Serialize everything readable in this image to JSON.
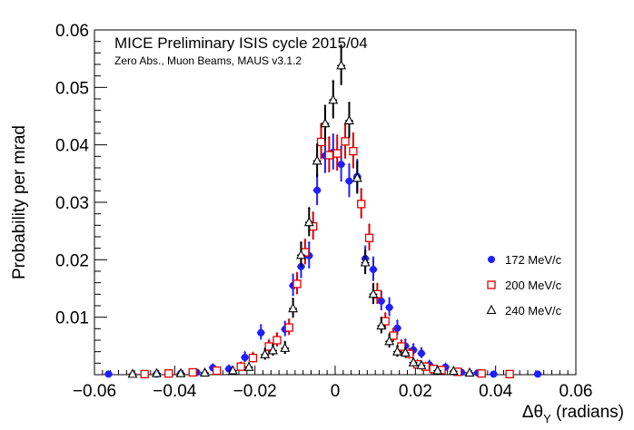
{
  "chart_data": {
    "type": "scatter",
    "title": "MICE Preliminary ISIS cycle 2015/04",
    "subtitle": "Zero Abs., Muon Beams, MAUS v3.1.2",
    "xlabel_main": "Δθ",
    "xlabel_sub": "Y",
    "xlabel_unit": " (radians)",
    "ylabel": "Probability per mrad",
    "xlim": [
      -0.06,
      0.06
    ],
    "ylim": [
      0,
      0.06
    ],
    "x_ticks": [
      "−0.06",
      "−0.04",
      "−0.02",
      "0",
      "0.02",
      "0.04",
      "0.06"
    ],
    "x_tick_values": [
      -0.06,
      -0.04,
      -0.02,
      0,
      0.02,
      0.04,
      0.06
    ],
    "y_ticks": [
      "0.01",
      "0.02",
      "0.03",
      "0.04",
      "0.05",
      "0.06"
    ],
    "y_tick_values": [
      0.01,
      0.02,
      0.03,
      0.04,
      0.05,
      0.06
    ],
    "legend_position": "right",
    "grid": false,
    "series": [
      {
        "name": "172 MeV/c",
        "marker": "filled-circle",
        "color": "#1f1fff",
        "points": [
          [
            -0.0565,
            0.0001,
            0.0003
          ],
          [
            -0.0445,
            0.0001,
            0.0002
          ],
          [
            -0.0385,
            0.0002,
            0.0003
          ],
          [
            -0.0345,
            0.0004,
            0.0004
          ],
          [
            -0.0305,
            0.0012,
            0.0005
          ],
          [
            -0.0265,
            0.001,
            0.0005
          ],
          [
            -0.0225,
            0.003,
            0.0008
          ],
          [
            -0.0185,
            0.0073,
            0.0012
          ],
          [
            -0.0165,
            0.0047,
            0.001
          ],
          [
            -0.0125,
            0.0079,
            0.0012
          ],
          [
            -0.0105,
            0.0155,
            0.0018
          ],
          [
            -0.0085,
            0.0188,
            0.002
          ],
          [
            -0.0065,
            0.0207,
            0.0022
          ],
          [
            -0.0045,
            0.0321,
            0.0026
          ],
          [
            -0.0025,
            0.0381,
            0.003
          ],
          [
            -0.0005,
            0.0387,
            0.003
          ],
          [
            0.0015,
            0.0366,
            0.003
          ],
          [
            0.0035,
            0.0337,
            0.0028
          ],
          [
            0.0055,
            0.0345,
            0.0028
          ],
          [
            0.0075,
            0.0202,
            0.002
          ],
          [
            0.0095,
            0.0183,
            0.002
          ],
          [
            0.0115,
            0.0128,
            0.0016
          ],
          [
            0.0135,
            0.0117,
            0.0015
          ],
          [
            0.0155,
            0.0081,
            0.0012
          ],
          [
            0.0175,
            0.005,
            0.001
          ],
          [
            0.0195,
            0.0043,
            0.0009
          ],
          [
            0.0215,
            0.0037,
            0.0008
          ],
          [
            0.0235,
            0.0017,
            0.0006
          ],
          [
            0.0255,
            0.0007,
            0.0005
          ],
          [
            0.0275,
            0.0013,
            0.0005
          ],
          [
            0.0315,
            0.0004,
            0.0004
          ],
          [
            0.0355,
            0.0003,
            0.0003
          ],
          [
            0.0395,
            0.0001,
            0.0002
          ],
          [
            0.0505,
            0.0001,
            0.0002
          ]
        ]
      },
      {
        "name": "200 MeV/c",
        "marker": "open-square",
        "color": "#e00000",
        "points": [
          [
            -0.0475,
            0.0001,
            0.0002
          ],
          [
            -0.0415,
            0.0002,
            0.0003
          ],
          [
            -0.0355,
            0.0004,
            0.0003
          ],
          [
            -0.0295,
            0.0007,
            0.0004
          ],
          [
            -0.0235,
            0.0014,
            0.0006
          ],
          [
            -0.0205,
            0.0029,
            0.0008
          ],
          [
            -0.0165,
            0.0049,
            0.001
          ],
          [
            -0.0145,
            0.006,
            0.0011
          ],
          [
            -0.0115,
            0.0082,
            0.0013
          ],
          [
            -0.0095,
            0.0158,
            0.0018
          ],
          [
            -0.0075,
            0.0213,
            0.0021
          ],
          [
            -0.0055,
            0.0258,
            0.0023
          ],
          [
            -0.0035,
            0.0405,
            0.003
          ],
          [
            -0.0015,
            0.0382,
            0.003
          ],
          [
            0.0005,
            0.0385,
            0.003
          ],
          [
            0.0025,
            0.0406,
            0.003
          ],
          [
            0.0045,
            0.0389,
            0.003
          ],
          [
            0.0065,
            0.0297,
            0.0025
          ],
          [
            0.0085,
            0.0238,
            0.0022
          ],
          [
            0.0105,
            0.014,
            0.0017
          ],
          [
            0.0125,
            0.0093,
            0.0013
          ],
          [
            0.0145,
            0.0068,
            0.0011
          ],
          [
            0.0165,
            0.0049,
            0.001
          ],
          [
            0.0185,
            0.0036,
            0.0008
          ],
          [
            0.0205,
            0.0018,
            0.0006
          ],
          [
            0.0225,
            0.0014,
            0.0005
          ],
          [
            0.0245,
            0.001,
            0.0005
          ],
          [
            0.0265,
            0.0008,
            0.0004
          ],
          [
            0.0305,
            0.0005,
            0.0004
          ],
          [
            0.0365,
            0.0002,
            0.0003
          ],
          [
            0.0435,
            0.0001,
            0.0002
          ]
        ]
      },
      {
        "name": "240 MeV/c",
        "marker": "open-triangle",
        "color": "#000000",
        "points": [
          [
            -0.0505,
            0.0001,
            0.0002
          ],
          [
            -0.0445,
            0.0002,
            0.0002
          ],
          [
            -0.0385,
            0.0002,
            0.0003
          ],
          [
            -0.0325,
            0.0003,
            0.0003
          ],
          [
            -0.0255,
            0.0007,
            0.0004
          ],
          [
            -0.0215,
            0.0013,
            0.0005
          ],
          [
            -0.0175,
            0.0035,
            0.0009
          ],
          [
            -0.0155,
            0.0042,
            0.0009
          ],
          [
            -0.0125,
            0.0046,
            0.001
          ],
          [
            -0.0105,
            0.0115,
            0.0016
          ],
          [
            -0.0085,
            0.0208,
            0.0021
          ],
          [
            -0.0065,
            0.0265,
            0.0024
          ],
          [
            -0.0045,
            0.0372,
            0.0028
          ],
          [
            -0.0025,
            0.0437,
            0.003
          ],
          [
            -0.0005,
            0.0478,
            0.0032
          ],
          [
            0.0015,
            0.0538,
            0.0034
          ],
          [
            0.0035,
            0.0442,
            0.003
          ],
          [
            0.0055,
            0.0342,
            0.0027
          ],
          [
            0.0075,
            0.0195,
            0.002
          ],
          [
            0.0095,
            0.014,
            0.0017
          ],
          [
            0.0115,
            0.0085,
            0.0013
          ],
          [
            0.0135,
            0.0058,
            0.0011
          ],
          [
            0.0155,
            0.004,
            0.0009
          ],
          [
            0.0175,
            0.0038,
            0.0008
          ],
          [
            0.0195,
            0.0021,
            0.0006
          ],
          [
            0.0215,
            0.0016,
            0.0005
          ],
          [
            0.0255,
            0.0007,
            0.0004
          ],
          [
            0.0295,
            0.0006,
            0.0004
          ],
          [
            0.0335,
            0.0003,
            0.0003
          ]
        ]
      }
    ]
  }
}
